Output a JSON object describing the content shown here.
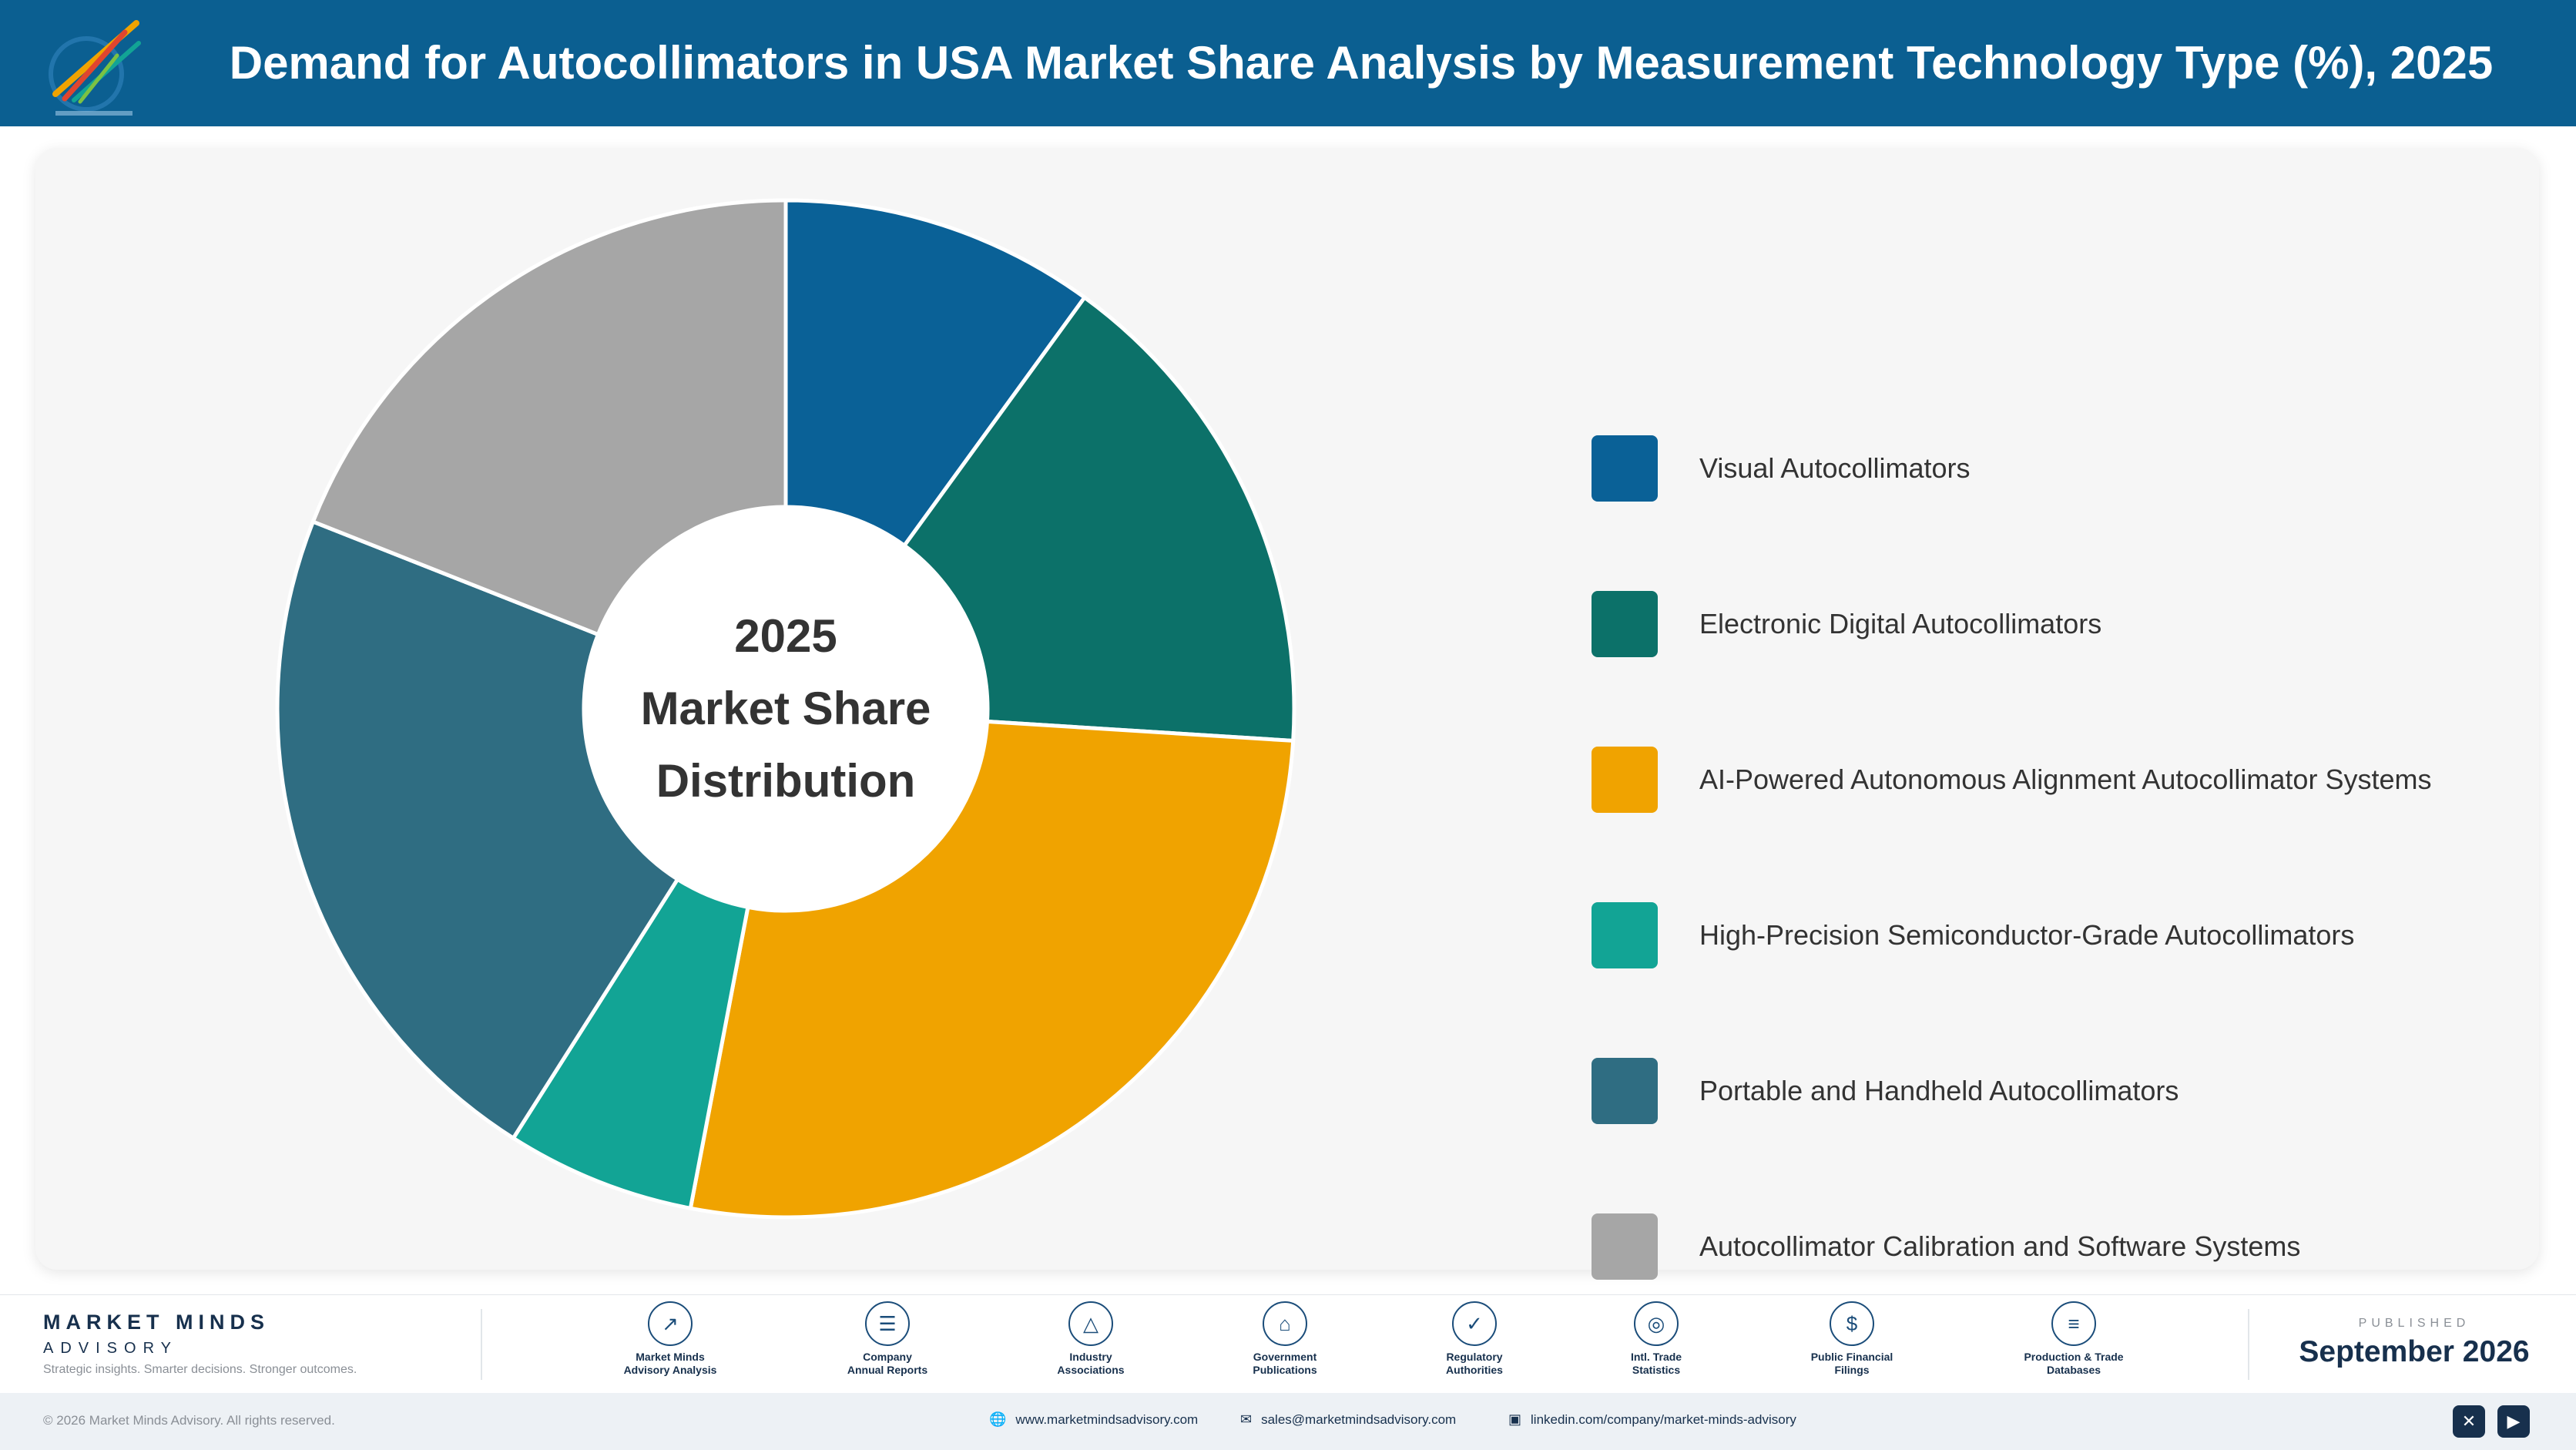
{
  "header": {
    "title": "Demand for Autocollimators in USA Market Share Analysis by Measurement Technology Type (%), 2025",
    "background": "#0b5f91"
  },
  "chart_data": {
    "type": "pie",
    "style": "donut",
    "title": "Demand for Autocollimators in USA Market Share Analysis by Measurement Technology Type (%), 2025",
    "center_label": [
      "2025",
      "Market Share",
      "Distribution"
    ],
    "legend_position": "right",
    "categories": [
      "Visual Autocollimators",
      "Electronic Digital Autocollimators",
      "AI-Powered Autonomous Alignment Autocollimator Systems",
      "High-Precision Semiconductor-Grade Autocollimators",
      "Portable and Handheld Autocollimators",
      "Autocollimator Calibration and Software Systems"
    ],
    "values": [
      10,
      16,
      27,
      6,
      22,
      19
    ],
    "colors": [
      "#0a6197",
      "#0c7169",
      "#f0a300",
      "#12a495",
      "#2f6d82",
      "#a6a6a6"
    ]
  },
  "footer": {
    "brand_name": "MARKET MINDS",
    "brand_sub": "ADVISORY",
    "tagline": "Strategic insights. Smarter decisions. Stronger outcomes.",
    "sources": [
      {
        "icon": "chart-line-icon",
        "line1": "Market Minds",
        "line2": "Advisory Analysis"
      },
      {
        "icon": "document-icon",
        "line1": "Company",
        "line2": "Annual Reports"
      },
      {
        "icon": "network-icon",
        "line1": "Industry",
        "line2": "Associations"
      },
      {
        "icon": "government-building-icon",
        "line1": "Government",
        "line2": "Publications"
      },
      {
        "icon": "shield-check-icon",
        "line1": "Regulatory",
        "line2": "Authorities"
      },
      {
        "icon": "globe-icon",
        "line1": "Intl. Trade",
        "line2": "Statistics"
      },
      {
        "icon": "dollar-coin-icon",
        "line1": "Public Financial",
        "line2": "Filings"
      },
      {
        "icon": "database-icon",
        "line1": "Production & Trade",
        "line2": "Databases"
      }
    ],
    "published_label": "PUBLISHED",
    "published_date": "September 2026"
  },
  "bottom_bar": {
    "copyright": "© 2026 Market Minds Advisory. All rights reserved.",
    "website": "www.marketmindsadvisory.com",
    "email": "sales@marketmindsadvisory.com",
    "linkedin": "linkedin.com/company/market-minds-advisory"
  }
}
